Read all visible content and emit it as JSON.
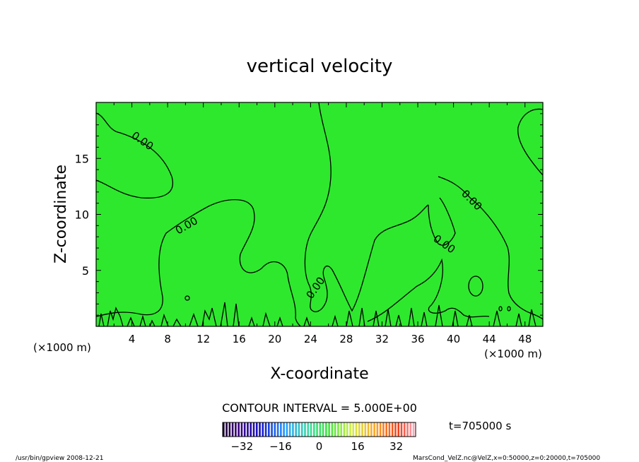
{
  "chart_data": {
    "type": "heatmap",
    "title": "vertical velocity",
    "xlabel": "X-coordinate",
    "ylabel": "Z-coordinate",
    "x_unit": "(×1000 m)",
    "xlim": [
      0,
      50
    ],
    "ylim": [
      0,
      20
    ],
    "x_ticks": [
      4,
      8,
      12,
      16,
      20,
      24,
      28,
      32,
      36,
      40,
      44,
      48
    ],
    "y_ticks": [
      5,
      10,
      15
    ],
    "contour_level_label": "0.00",
    "contour_interval_text": "CONTOUR INTERVAL = 5.000E+00",
    "time_text": "t=705000 s",
    "colorbar": {
      "range": [
        -40,
        40
      ],
      "ticks": [
        -32,
        -16,
        0,
        16,
        32
      ],
      "colormap": "rainbow"
    },
    "fill_color": "#2ee82e",
    "footer_left": "/usr/bin/gpview   2008-12-21",
    "footer_right": "MarsCond_VelZ.nc@VelZ,x=0:50000,z=0:20000,t=705000"
  }
}
